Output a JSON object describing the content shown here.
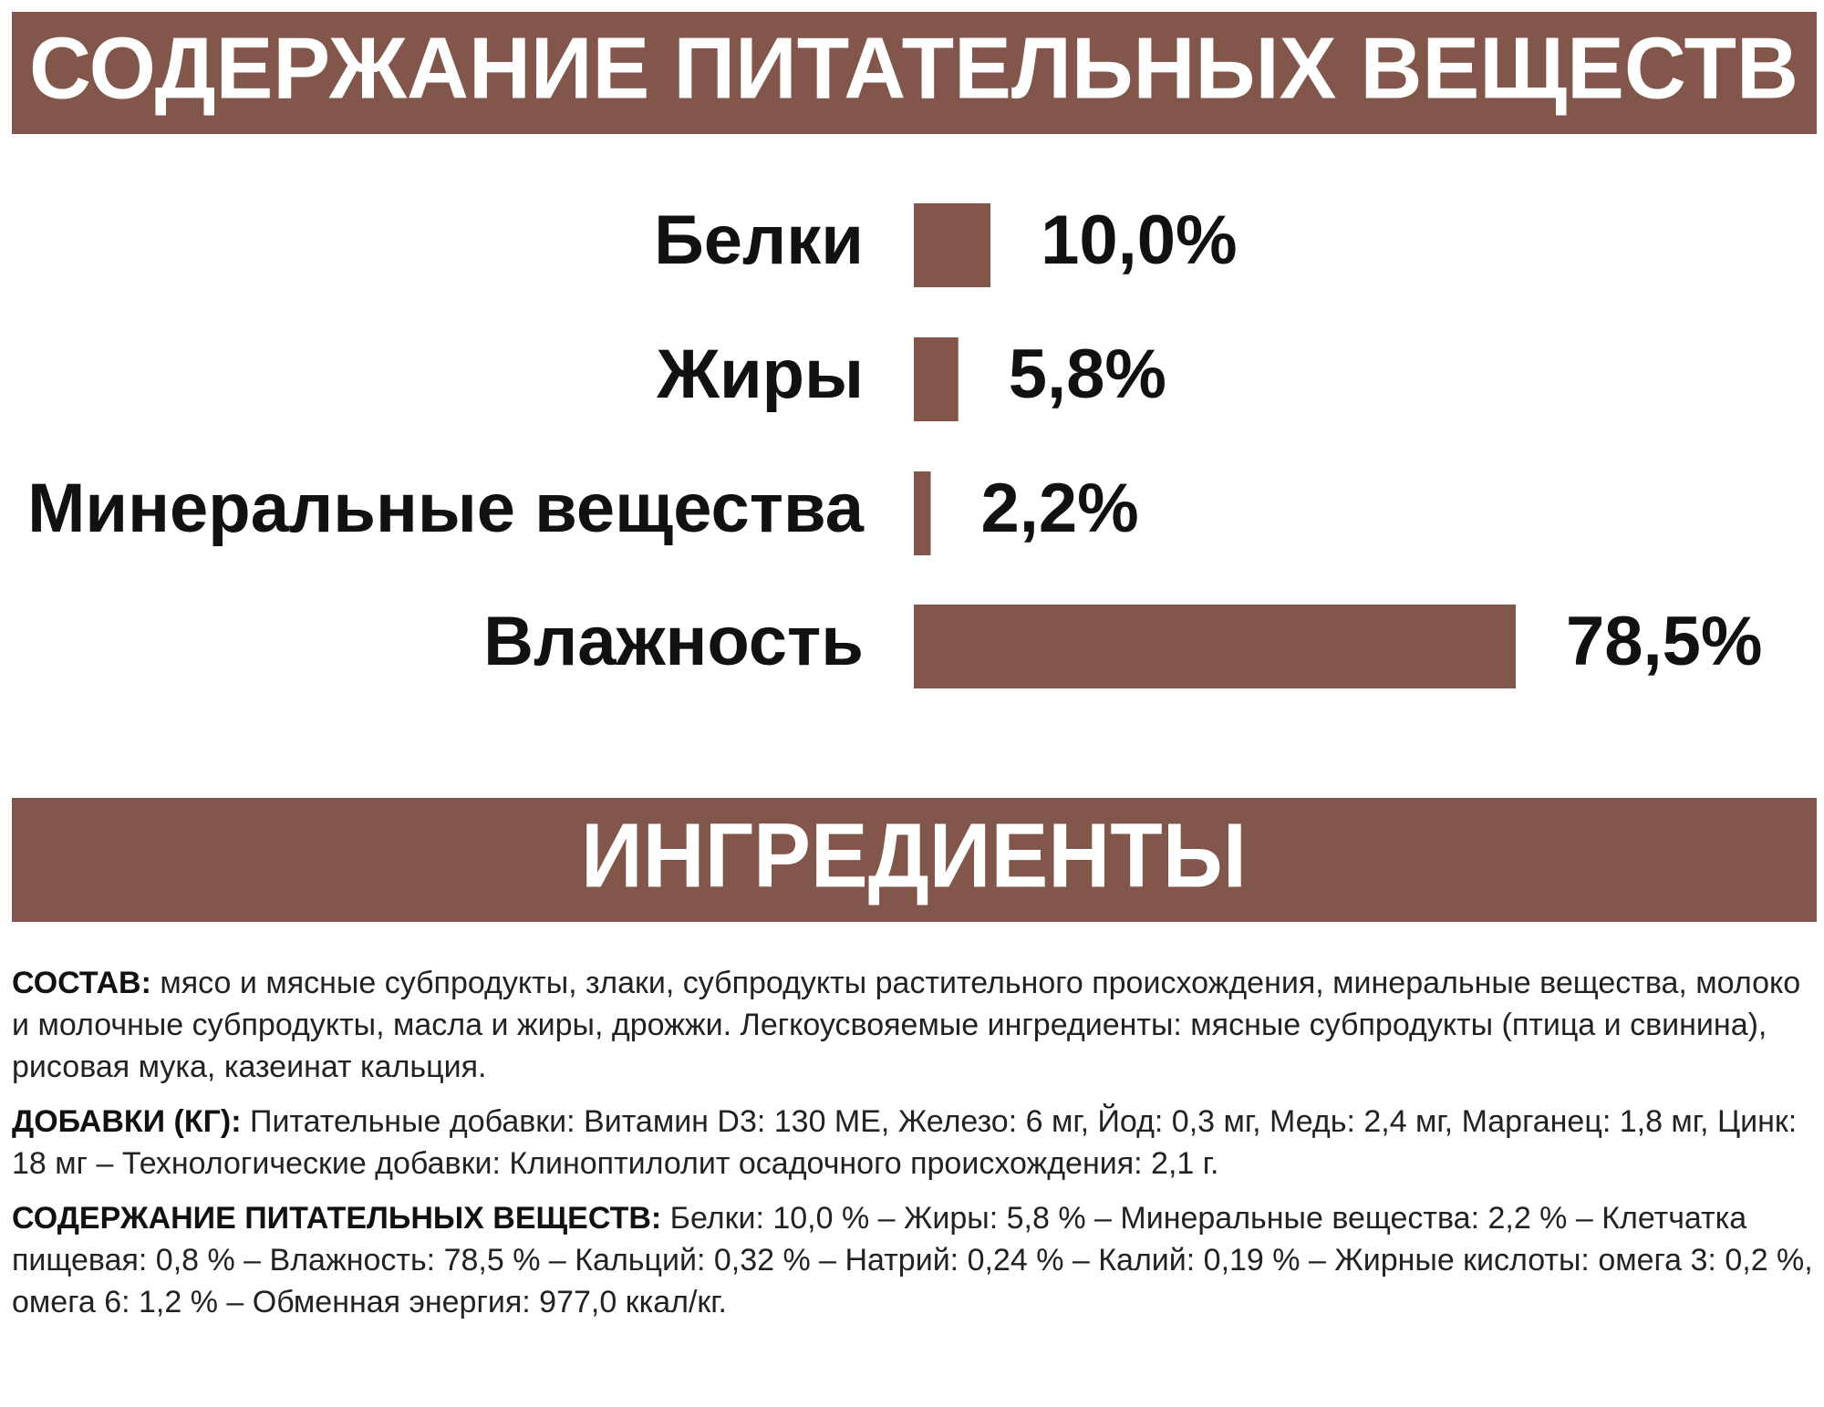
{
  "chart_data": {
    "type": "bar",
    "orientation": "horizontal",
    "title": "СОДЕРЖАНИЕ ПИТАТЕЛЬНЫХ ВЕЩЕСТВ",
    "categories": [
      "Белки",
      "Жиры",
      "Минеральные вещества",
      "Влажность"
    ],
    "values": [
      10.0,
      5.8,
      2.2,
      78.5
    ],
    "value_labels": [
      "10,0%",
      "5,8%",
      "2,2%",
      "78,5%"
    ],
    "color": "#82564a"
  },
  "ingredients": {
    "title": "ИНГРЕДИЕНТЫ",
    "paragraphs": [
      {
        "label": "СОСТАВ:",
        "text": "мясо и мясные субпродукты, злаки, субпродукты растительного происхождения, минеральные вещества, молоко и молочные субпродукты, масла и жиры, дрожжи. Легкоусвояемые ингредиенты: мясные субпродукты (птица и свинина), рисовая мука, казеинат кальция."
      },
      {
        "label": "ДОБАВКИ (КГ):",
        "text": "Питательные добавки: Витамин D3: 130 МЕ, Железо: 6 мг, Йод: 0,3 мг, Медь: 2,4 мг, Марганец: 1,8 мг, Цинк: 18 мг – Технологические добавки: Клиноптилолит осадочного происхождения: 2,1 г."
      },
      {
        "label": "СОДЕРЖАНИЕ ПИТАТЕЛЬНЫХ ВЕЩЕСТВ:",
        "text": "Белки: 10,0 % – Жиры: 5,8 % – Минеральные вещества: 2,2 % – Клетчатка пищевая: 0,8 % – Влажность: 78,5 % – Кальций: 0,32 % – Натрий: 0,24 % – Калий: 0,19 % – Жирные кислоты: омега 3: 0,2 %, омега 6: 1,2 % – Обменная энергия: 977,0 ккал/кг."
      }
    ]
  }
}
